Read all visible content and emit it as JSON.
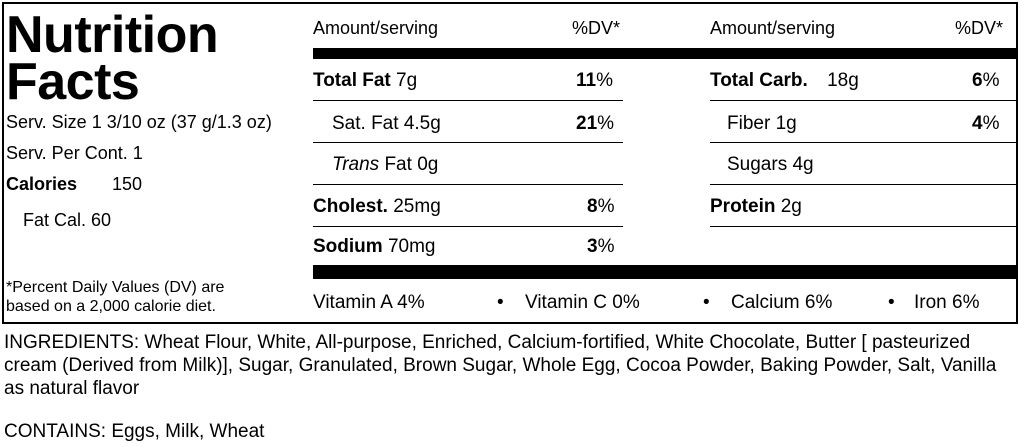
{
  "label": {
    "title_line1": "Nutrition",
    "title_line2": "Facts",
    "serving_size": "Serv. Size 1 3/10 oz  (37 g/1.3 oz)",
    "servings_per_container": "Serv. Per Cont. 1",
    "calories_label": "Calories",
    "calories_value": "150",
    "fat_calories": "Fat Cal.  60",
    "dv_footnote_line1": "*Percent Daily Values (DV) are",
    "dv_footnote_line2": "based on a 2,000 calorie diet."
  },
  "headers": {
    "left_amount": "Amount/serving",
    "left_dv": "%DV*",
    "right_amount": "Amount/serving",
    "right_dv": "%DV*"
  },
  "nutrients_left": [
    {
      "name": "Total Fat",
      "amount": "7g",
      "dv_num": "11",
      "dv_pct": "%"
    },
    {
      "name": "Sat. Fat",
      "amount": "4.5g",
      "dv_num": "21",
      "dv_pct": "%"
    },
    {
      "name_italic": "Trans",
      "name": "Fat",
      "amount": "0g"
    },
    {
      "name": "Cholest.",
      "amount": "25mg",
      "dv_num": "8",
      "dv_pct": "%"
    },
    {
      "name": "Sodium",
      "amount": "70mg",
      "dv_num": "3",
      "dv_pct": "%"
    }
  ],
  "nutrients_right": [
    {
      "name": "Total Carb.",
      "amount": "18g",
      "dv_num": "6",
      "dv_pct": "%"
    },
    {
      "name": "Fiber",
      "amount": "1g",
      "dv_num": "4",
      "dv_pct": "%"
    },
    {
      "name": "Sugars",
      "amount": "4g"
    },
    {
      "name": "Protein",
      "amount": "2g"
    }
  ],
  "vitamins": [
    {
      "text": "Vitamin A  4%"
    },
    {
      "text": "Vitamin C  0%"
    },
    {
      "text": "Calcium  6%"
    },
    {
      "text": "Iron  6%"
    }
  ],
  "bullet": "•",
  "ingredients": "INGREDIENTS: Wheat Flour, White, All-purpose, Enriched, Calcium-fortified, White Chocolate, Butter [ pasteurized cream (Derived from Milk)], Sugar, Granulated, Brown Sugar, Whole Egg, Cocoa Powder, Baking Powder, Salt, Vanilla as natural flavor",
  "contains": "CONTAINS: Eggs, Milk, Wheat"
}
